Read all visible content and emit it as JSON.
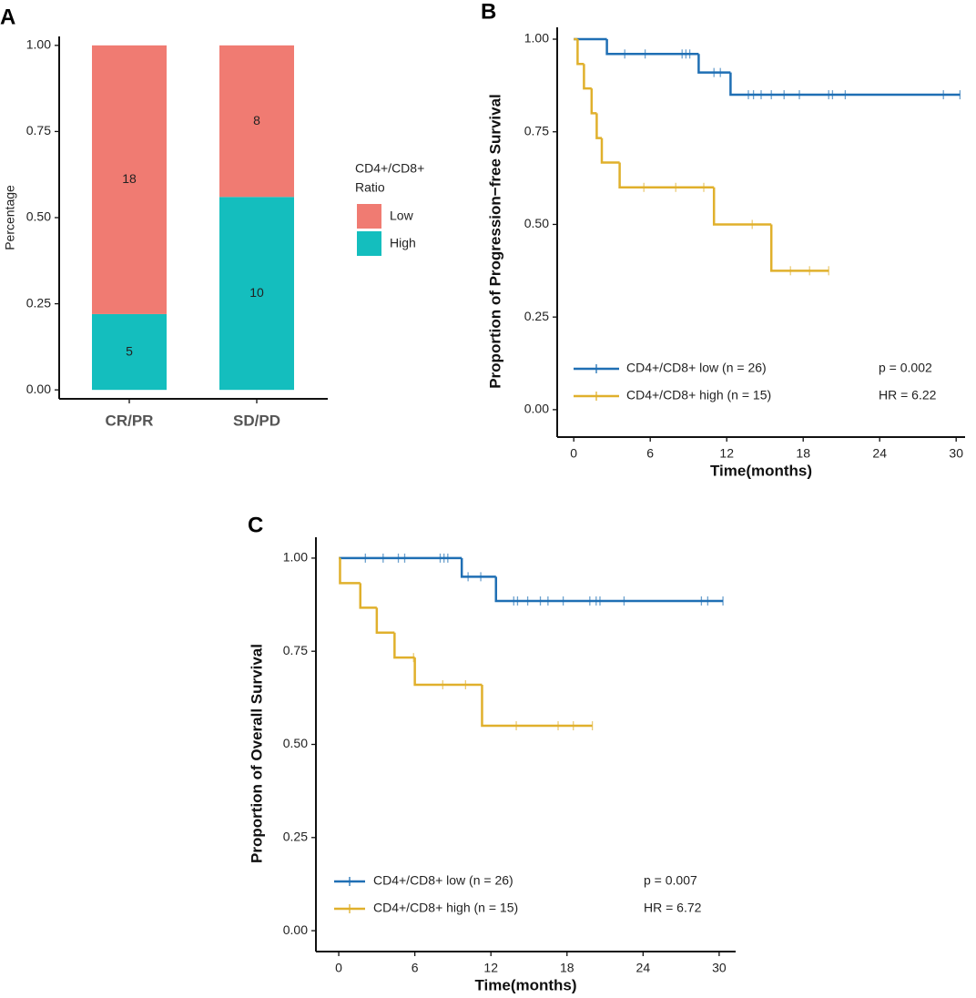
{
  "chart_data": [
    {
      "type": "stacked-bar",
      "label": "A",
      "ylabel": "Percentage",
      "categories": [
        "CR/PR",
        "SD/PD"
      ],
      "legend_title": [
        "CD4+/CD8+",
        "Ratio"
      ],
      "series": [
        {
          "name": "Low",
          "color": "#f07b72",
          "values": [
            0.78,
            0.44
          ],
          "counts": [
            18,
            8
          ]
        },
        {
          "name": "High",
          "color": "#14bebe",
          "values": [
            0.22,
            0.56
          ],
          "counts": [
            5,
            10
          ]
        }
      ],
      "ylim": [
        -0.026,
        1.026
      ],
      "yticks": [
        {
          "value": 0,
          "label": "0.00"
        },
        {
          "value": 0.25,
          "label": "0.25"
        },
        {
          "value": 0.5,
          "label": "0.50"
        },
        {
          "value": 0.75,
          "label": "0.75"
        },
        {
          "value": 1,
          "label": "1.00"
        }
      ]
    },
    {
      "type": "survival",
      "label": "B",
      "xlabel": "Time(months)",
      "ylabel": "Proportion of Progression−free Survival",
      "xlim": [
        -1.3,
        30.7
      ],
      "xticks": [
        0,
        6,
        12,
        18,
        24,
        30
      ],
      "ylim": [
        -0.074,
        1.032
      ],
      "yticks": [
        {
          "value": 0,
          "label": "0.00"
        },
        {
          "value": 0.25,
          "label": "0.25"
        },
        {
          "value": 0.5,
          "label": "0.50"
        },
        {
          "value": 0.75,
          "label": "0.75"
        },
        {
          "value": 1,
          "label": "1.00"
        }
      ],
      "series": [
        {
          "name": "CD4+/CD8+ low (n = 26)",
          "color": "#1f6fb4",
          "x": [
            0,
            2.6,
            9.8,
            12.3
          ],
          "values": [
            1,
            0.96,
            0.91,
            0.85
          ],
          "censor_x": [
            4,
            5.6,
            8.5,
            8.8,
            9.1,
            11,
            11.5,
            13.7,
            14.1,
            14.7,
            15.5,
            16.5,
            17.7,
            20,
            20.3,
            21.3,
            29,
            30.3
          ],
          "censor_y": [
            0.96,
            0.96,
            0.96,
            0.96,
            0.96,
            0.91,
            0.91,
            0.85,
            0.85,
            0.85,
            0.85,
            0.85,
            0.85,
            0.85,
            0.85,
            0.85,
            0.85,
            0.85
          ]
        },
        {
          "name": "CD4+/CD8+ high (n = 15)",
          "color": "#e0b02c",
          "x": [
            0,
            0.3,
            0.8,
            1.4,
            1.8,
            2.2,
            3.6,
            11,
            15.5
          ],
          "values": [
            1,
            0.933,
            0.867,
            0.8,
            0.733,
            0.667,
            0.6,
            0.5,
            0.375
          ],
          "censor_x": [
            5.5,
            8,
            10.2,
            14,
            17,
            18.5,
            20
          ],
          "censor_y": [
            0.6,
            0.6,
            0.6,
            0.5,
            0.375,
            0.375,
            0.375
          ]
        }
      ],
      "annotations": [
        "p = 0.002",
        "HR = 6.22"
      ]
    },
    {
      "type": "survival",
      "label": "C",
      "xlabel": "Time(months)",
      "ylabel": "Proportion of Overall Survival",
      "xlim": [
        -1.8,
        31.3
      ],
      "xticks": [
        0,
        6,
        12,
        18,
        24,
        30
      ],
      "ylim": [
        -0.056,
        1.056
      ],
      "yticks": [
        {
          "value": 0,
          "label": "0.00"
        },
        {
          "value": 0.25,
          "label": "0.25"
        },
        {
          "value": 0.5,
          "label": "0.50"
        },
        {
          "value": 0.75,
          "label": "0.75"
        },
        {
          "value": 1,
          "label": "1.00"
        }
      ],
      "series": [
        {
          "name": "CD4+/CD8+ low (n = 26)",
          "color": "#1f6fb4",
          "x": [
            0,
            9.7,
            12.4
          ],
          "values": [
            1,
            0.95,
            0.885
          ],
          "censor_x": [
            2.1,
            3.5,
            4.7,
            5.2,
            8,
            8.3,
            8.6,
            10.2,
            11.2,
            13.8,
            14.1,
            14.9,
            15.9,
            16.5,
            17.7,
            19.8,
            20.3,
            20.6,
            22.5,
            28.6,
            29.1,
            30.3
          ],
          "censor_y": [
            1,
            1,
            1,
            1,
            1,
            1,
            1,
            0.95,
            0.95,
            0.885,
            0.885,
            0.885,
            0.885,
            0.885,
            0.885,
            0.885,
            0.885,
            0.885,
            0.885,
            0.885,
            0.885,
            0.885
          ]
        },
        {
          "name": "CD4+/CD8+ high (n = 15)",
          "color": "#e0b02c",
          "x": [
            0,
            0.1,
            1.7,
            3,
            4.4,
            6,
            11.3
          ],
          "values": [
            1,
            0.933,
            0.867,
            0.8,
            0.733,
            0.66,
            0.55
          ],
          "censor_x": [
            5.9,
            8.2,
            10,
            14,
            17.3,
            18.5,
            20
          ],
          "censor_y": [
            0.733,
            0.66,
            0.66,
            0.55,
            0.55,
            0.55,
            0.55
          ]
        }
      ],
      "annotations": [
        "p = 0.007",
        "HR = 6.72"
      ]
    }
  ]
}
